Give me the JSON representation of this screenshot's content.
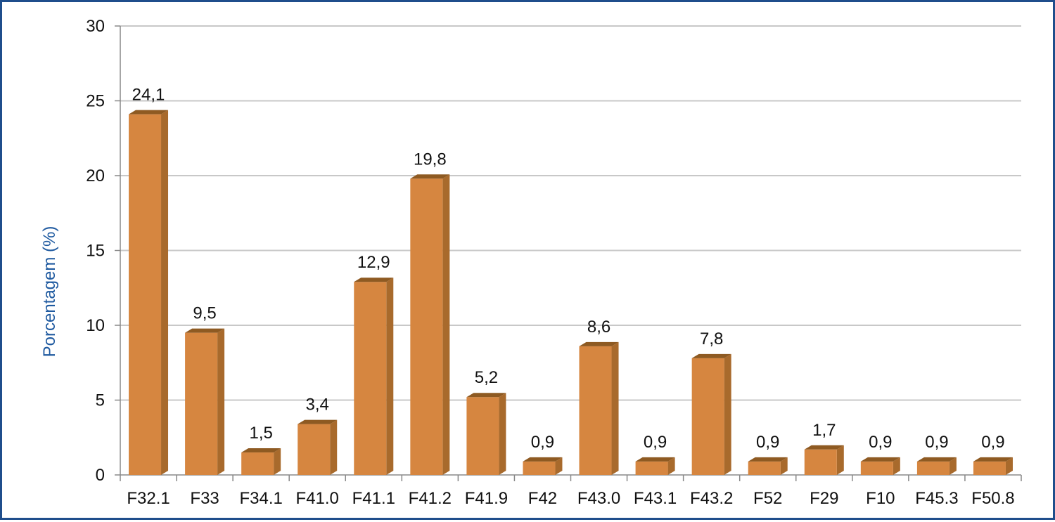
{
  "colors": {
    "bar_front": "#d68640",
    "bar_top": "#8e5a22",
    "bar_side": "#a86a2c",
    "grid": "#c8c8c8",
    "axis": "#888888",
    "ylabel": "#1f5aa0",
    "frame": "#1f4e8c"
  },
  "chart_data": {
    "type": "bar",
    "title": "",
    "xlabel": "",
    "ylabel": "Porcentagem (%)",
    "ylim": [
      0,
      30
    ],
    "yticks": [
      "0",
      "5",
      "10",
      "15",
      "20",
      "25",
      "30"
    ],
    "grid": true,
    "legend": "none",
    "style": "3d-bar",
    "categories": [
      "F32.1",
      "F33",
      "F34.1",
      "F41.0",
      "F41.1",
      "F41.2",
      "F41.9",
      "F42",
      "F43.0",
      "F43.1",
      "F43.2",
      "F52",
      "F29",
      "F10",
      "F45.3",
      "F50.8"
    ],
    "values": [
      24.1,
      9.5,
      1.5,
      3.4,
      12.9,
      19.8,
      5.2,
      0.9,
      8.6,
      0.9,
      7.8,
      0.9,
      1.7,
      0.9,
      0.9,
      0.9
    ],
    "data_labels": [
      "24,1",
      "9,5",
      "1,5",
      "3,4",
      "12,9",
      "19,8",
      "5,2",
      "0,9",
      "8,6",
      "0,9",
      "7,8",
      "0,9",
      "1,7",
      "0,9",
      "0,9",
      "0,9"
    ]
  }
}
